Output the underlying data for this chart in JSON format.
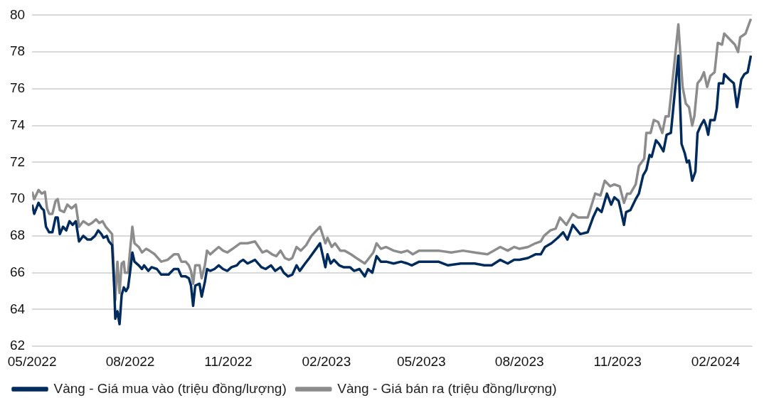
{
  "chart_data": {
    "type": "line",
    "xlim": [
      "2022-05-01",
      "2024-03-06"
    ],
    "ylim": [
      62,
      80
    ],
    "yticks": [
      62,
      64,
      66,
      68,
      70,
      72,
      74,
      76,
      78,
      80
    ],
    "xticks": [
      {
        "value": "2022-05-01",
        "label": "05/2022"
      },
      {
        "value": "2022-08-01",
        "label": "08/2022"
      },
      {
        "value": "2022-11-01",
        "label": "11/2022"
      },
      {
        "value": "2023-02-01",
        "label": "02/2023"
      },
      {
        "value": "2023-05-01",
        "label": "05/2023"
      },
      {
        "value": "2023-08-01",
        "label": "08/2023"
      },
      {
        "value": "2023-11-01",
        "label": "11/2023"
      },
      {
        "value": "2024-02-01",
        "label": "02/2024"
      }
    ],
    "grid": "y",
    "legend": "bottom",
    "marker": "none",
    "line_style": "solid",
    "series": [
      {
        "name": "Vàng - Giá mua vào (triệu đồng/lượng)",
        "color": "#002b5c",
        "x": [
          "2022-05-01",
          "2022-05-03",
          "2022-05-07",
          "2022-05-10",
          "2022-05-12",
          "2022-05-14",
          "2022-05-17",
          "2022-05-20",
          "2022-05-23",
          "2022-05-25",
          "2022-05-27",
          "2022-05-30",
          "2022-06-02",
          "2022-06-05",
          "2022-06-08",
          "2022-06-11",
          "2022-06-14",
          "2022-06-18",
          "2022-06-22",
          "2022-06-25",
          "2022-06-29",
          "2022-07-02",
          "2022-07-05",
          "2022-07-07",
          "2022-07-10",
          "2022-07-12",
          "2022-07-15",
          "2022-07-17",
          "2022-07-18",
          "2022-07-20",
          "2022-07-22",
          "2022-07-24",
          "2022-07-26",
          "2022-07-28",
          "2022-07-30",
          "2022-08-01",
          "2022-08-03",
          "2022-08-05",
          "2022-08-09",
          "2022-08-12",
          "2022-08-14",
          "2022-08-18",
          "2022-08-21",
          "2022-08-26",
          "2022-08-30",
          "2022-09-06",
          "2022-09-11",
          "2022-09-15",
          "2022-09-18",
          "2022-09-22",
          "2022-09-25",
          "2022-09-27",
          "2022-09-29",
          "2022-10-01",
          "2022-10-05",
          "2022-10-07",
          "2022-10-10",
          "2022-10-12",
          "2022-10-15",
          "2022-10-19",
          "2022-10-23",
          "2022-10-27",
          "2022-10-31",
          "2022-11-04",
          "2022-11-09",
          "2022-11-12",
          "2022-11-15",
          "2022-11-19",
          "2022-11-26",
          "2022-12-02",
          "2022-12-06",
          "2022-12-11",
          "2022-12-15",
          "2022-12-20",
          "2022-12-23",
          "2022-12-27",
          "2022-12-31",
          "2023-01-04",
          "2023-01-07",
          "2023-01-12",
          "2023-01-16",
          "2023-01-21",
          "2023-01-26",
          "2023-01-31",
          "2023-02-02",
          "2023-02-05",
          "2023-02-08",
          "2023-02-13",
          "2023-02-17",
          "2023-02-23",
          "2023-02-27",
          "2023-03-04",
          "2023-03-09",
          "2023-03-12",
          "2023-03-16",
          "2023-03-20",
          "2023-03-24",
          "2023-03-29",
          "2023-04-05",
          "2023-04-12",
          "2023-04-18",
          "2023-04-22",
          "2023-04-29",
          "2023-05-08",
          "2023-05-17",
          "2023-05-26",
          "2023-06-07",
          "2023-06-20",
          "2023-06-29",
          "2023-07-06",
          "2023-07-14",
          "2023-07-21",
          "2023-07-27",
          "2023-08-01",
          "2023-08-09",
          "2023-08-16",
          "2023-08-21",
          "2023-08-25",
          "2023-08-31",
          "2023-09-06",
          "2023-09-11",
          "2023-09-15",
          "2023-09-20",
          "2023-09-27",
          "2023-10-04",
          "2023-10-09",
          "2023-10-13",
          "2023-10-17",
          "2023-10-22",
          "2023-10-26",
          "2023-10-29",
          "2023-11-02",
          "2023-11-04",
          "2023-11-07",
          "2023-11-09",
          "2023-11-13",
          "2023-11-18",
          "2023-11-21",
          "2023-11-25",
          "2023-11-28",
          "2023-12-01",
          "2023-12-03",
          "2023-12-07",
          "2023-12-10",
          "2023-12-14",
          "2023-12-17",
          "2023-12-21",
          "2023-12-23",
          "2023-12-28",
          "2023-12-31",
          "2024-01-03",
          "2024-01-05",
          "2024-01-07",
          "2024-01-10",
          "2024-01-13",
          "2024-01-15",
          "2024-01-18",
          "2024-01-21",
          "2024-01-23",
          "2024-01-25",
          "2024-01-27",
          "2024-01-31",
          "2024-02-02",
          "2024-02-04",
          "2024-02-08",
          "2024-02-09",
          "2024-02-14",
          "2024-02-18",
          "2024-02-21",
          "2024-02-25",
          "2024-02-28",
          "2024-03-02",
          "2024-03-05"
        ],
        "values": [
          69.7,
          69.2,
          69.8,
          69.5,
          69.4,
          68.5,
          68.2,
          68.2,
          69.0,
          69.0,
          68.1,
          68.5,
          68.3,
          68.8,
          68.6,
          68.8,
          67.7,
          68.0,
          67.8,
          67.8,
          68.0,
          68.3,
          68.1,
          67.9,
          68.0,
          67.7,
          67.5,
          65.2,
          63.5,
          63.9,
          63.2,
          64.8,
          65.2,
          65.0,
          65.2,
          66.1,
          67.1,
          66.6,
          66.4,
          66.2,
          66.4,
          66.1,
          66.3,
          66.2,
          65.9,
          65.9,
          66.2,
          66.2,
          65.8,
          65.8,
          65.7,
          65.3,
          64.2,
          65.3,
          65.4,
          64.7,
          65.5,
          66.2,
          66.1,
          66.2,
          66.4,
          66.2,
          66.1,
          66.3,
          66.4,
          66.6,
          66.7,
          66.5,
          66.7,
          66.3,
          66.2,
          66.4,
          66.1,
          66.3,
          66.0,
          65.8,
          65.9,
          66.4,
          66.1,
          66.5,
          66.8,
          67.2,
          67.6,
          66.3,
          67.0,
          66.5,
          66.7,
          66.4,
          66.3,
          66.3,
          66.1,
          66.2,
          65.8,
          66.2,
          66.0,
          66.9,
          66.6,
          66.6,
          66.5,
          66.6,
          66.5,
          66.4,
          66.6,
          66.6,
          66.6,
          66.4,
          66.5,
          66.5,
          66.4,
          66.4,
          66.7,
          66.5,
          66.7,
          66.7,
          66.8,
          67.0,
          67.0,
          67.4,
          67.6,
          67.9,
          68.2,
          67.8,
          68.6,
          68.1,
          68.2,
          69.0,
          69.5,
          69.3,
          70.3,
          69.7,
          70.1,
          69.9,
          69.4,
          68.6,
          69.3,
          69.4,
          70.0,
          70.3,
          71.3,
          71.6,
          72.4,
          72.3,
          73.2,
          73.0,
          72.6,
          73.5,
          73.6,
          74.8,
          77.8,
          73.0,
          72.5,
          72.0,
          72.1,
          71.0,
          71.5,
          73.6,
          74.0,
          74.3,
          74.0,
          73.5,
          74.3,
          74.3,
          74.9,
          76.3,
          76.3,
          76.8,
          76.5,
          76.3,
          75.0,
          76.5,
          76.8,
          76.9,
          77.8
        ]
      },
      {
        "name": "Vàng - Giá bán ra (triệu đồng/lượng)",
        "color": "#8c8c8c",
        "x": [
          "2022-05-01",
          "2022-05-03",
          "2022-05-07",
          "2022-05-10",
          "2022-05-13",
          "2022-05-15",
          "2022-05-17",
          "2022-05-20",
          "2022-05-23",
          "2022-05-25",
          "2022-05-27",
          "2022-05-31",
          "2022-06-03",
          "2022-06-07",
          "2022-06-11",
          "2022-06-14",
          "2022-06-18",
          "2022-06-23",
          "2022-06-26",
          "2022-06-30",
          "2022-07-03",
          "2022-07-06",
          "2022-07-09",
          "2022-07-12",
          "2022-07-15",
          "2022-07-17",
          "2022-07-18",
          "2022-07-20",
          "2022-07-22",
          "2022-07-24",
          "2022-07-26",
          "2022-07-27",
          "2022-07-30",
          "2022-08-01",
          "2022-08-03",
          "2022-08-05",
          "2022-08-09",
          "2022-08-12",
          "2022-08-16",
          "2022-08-19",
          "2022-08-24",
          "2022-08-30",
          "2022-09-05",
          "2022-09-11",
          "2022-09-15",
          "2022-09-18",
          "2022-09-22",
          "2022-09-25",
          "2022-09-27",
          "2022-09-29",
          "2022-10-01",
          "2022-10-05",
          "2022-10-07",
          "2022-10-10",
          "2022-10-12",
          "2022-10-15",
          "2022-10-19",
          "2022-10-23",
          "2022-10-27",
          "2022-10-31",
          "2022-11-05",
          "2022-11-12",
          "2022-11-15",
          "2022-11-19",
          "2022-11-26",
          "2022-12-03",
          "2022-12-07",
          "2022-12-12",
          "2022-12-16",
          "2022-12-20",
          "2022-12-24",
          "2022-12-28",
          "2022-12-31",
          "2023-01-04",
          "2023-01-08",
          "2023-01-13",
          "2023-01-18",
          "2023-01-26",
          "2023-01-31",
          "2023-02-02",
          "2023-02-06",
          "2023-02-09",
          "2023-02-14",
          "2023-02-18",
          "2023-02-24",
          "2023-03-01",
          "2023-03-09",
          "2023-03-13",
          "2023-03-17",
          "2023-03-20",
          "2023-03-24",
          "2023-03-29",
          "2023-04-05",
          "2023-04-12",
          "2023-04-18",
          "2023-04-23",
          "2023-04-29",
          "2023-05-08",
          "2023-05-17",
          "2023-05-29",
          "2023-06-09",
          "2023-06-20",
          "2023-07-02",
          "2023-07-14",
          "2023-07-21",
          "2023-07-27",
          "2023-08-01",
          "2023-08-09",
          "2023-08-16",
          "2023-08-21",
          "2023-08-24",
          "2023-08-30",
          "2023-09-04",
          "2023-09-08",
          "2023-09-14",
          "2023-09-20",
          "2023-09-25",
          "2023-10-04",
          "2023-10-11",
          "2023-10-16",
          "2023-10-20",
          "2023-10-25",
          "2023-10-29",
          "2023-11-03",
          "2023-11-07",
          "2023-11-10",
          "2023-11-13",
          "2023-11-18",
          "2023-11-21",
          "2023-11-26",
          "2023-11-28",
          "2023-12-02",
          "2023-12-05",
          "2023-12-09",
          "2023-12-13",
          "2023-12-16",
          "2023-12-19",
          "2023-12-22",
          "2023-12-28",
          "2024-01-01",
          "2024-01-04",
          "2024-01-07",
          "2024-01-10",
          "2024-01-12",
          "2024-01-15",
          "2024-01-18",
          "2024-01-21",
          "2024-01-24",
          "2024-01-27",
          "2024-01-31",
          "2024-02-03",
          "2024-02-07",
          "2024-02-09",
          "2024-02-14",
          "2024-02-19",
          "2024-02-22",
          "2024-02-24",
          "2024-02-29",
          "2024-03-05"
        ],
        "values": [
          70.4,
          70.0,
          70.5,
          70.3,
          70.4,
          69.5,
          69.2,
          69.2,
          69.9,
          70.0,
          69.4,
          69.3,
          69.7,
          69.5,
          69.7,
          68.5,
          68.8,
          68.6,
          68.7,
          68.9,
          68.7,
          68.8,
          68.5,
          68.3,
          68.1,
          65.7,
          64.5,
          66.6,
          64.9,
          66.5,
          66.6,
          66.0,
          66.0,
          67.3,
          68.5,
          67.6,
          67.4,
          67.1,
          67.3,
          67.2,
          67.0,
          66.6,
          66.7,
          67.0,
          67.0,
          66.6,
          66.6,
          66.4,
          66.1,
          65.4,
          66.4,
          66.4,
          65.7,
          66.4,
          67.2,
          67.0,
          67.2,
          67.4,
          67.2,
          67.1,
          67.3,
          67.6,
          67.6,
          67.6,
          67.7,
          67.1,
          67.2,
          67.0,
          66.9,
          67.2,
          66.8,
          66.7,
          66.8,
          67.4,
          67.2,
          67.5,
          68.0,
          68.5,
          67.6,
          67.9,
          67.4,
          67.6,
          67.2,
          67.2,
          67.0,
          66.8,
          66.5,
          66.8,
          67.1,
          67.6,
          67.3,
          67.4,
          67.2,
          67.1,
          67.2,
          67.0,
          67.2,
          67.2,
          67.2,
          67.1,
          67.2,
          67.1,
          67.0,
          67.4,
          67.2,
          67.4,
          67.3,
          67.4,
          67.6,
          67.7,
          68.0,
          68.3,
          68.4,
          69.0,
          68.6,
          69.2,
          69.0,
          69.0,
          70.3,
          70.2,
          71.0,
          70.7,
          70.8,
          70.7,
          69.8,
          70.3,
          70.3,
          70.8,
          71.8,
          72.2,
          73.6,
          73.6,
          74.3,
          74.2,
          73.6,
          74.5,
          74.5,
          76.1,
          79.5,
          76.1,
          75.2,
          75.0,
          74.0,
          74.5,
          76.3,
          76.5,
          76.9,
          76.1,
          76.7,
          76.9,
          78.5,
          78.4,
          79.0,
          78.7,
          78.4,
          78.0,
          78.8,
          79.0,
          79.8
        ]
      }
    ]
  }
}
